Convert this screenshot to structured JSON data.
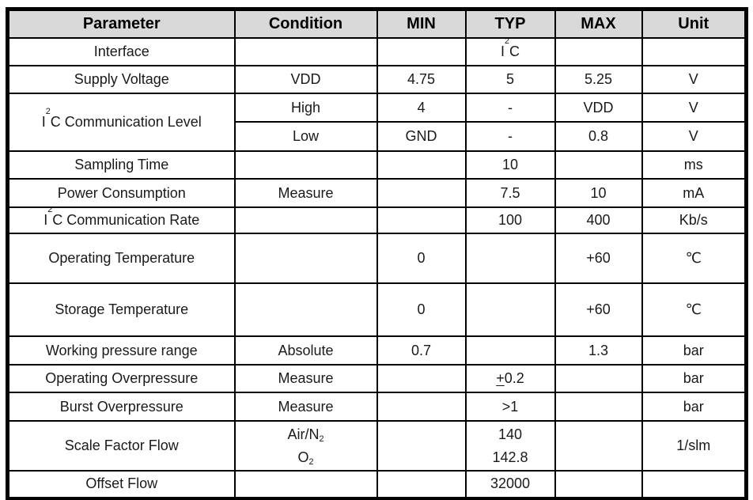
{
  "table": {
    "headers": [
      "Parameter",
      "Condition",
      "MIN",
      "TYP",
      "MAX",
      "Unit"
    ],
    "header_bg": "#d9d9d9",
    "border_color": "#000000",
    "rows": [
      {
        "cells": [
          {
            "text": "Interface"
          },
          {
            "text": ""
          },
          {
            "text": ""
          },
          {
            "text": "I^2^C"
          },
          {
            "text": ""
          },
          {
            "text": ""
          }
        ]
      },
      {
        "cells": [
          {
            "text": "Supply Voltage"
          },
          {
            "text": "VDD"
          },
          {
            "text": "4.75"
          },
          {
            "text": "5"
          },
          {
            "text": "5.25"
          },
          {
            "text": "V"
          }
        ]
      },
      {
        "cells": [
          {
            "text": "I^2^C Communication Level",
            "rowspan": 2
          },
          {
            "text": "High"
          },
          {
            "text": "4"
          },
          {
            "text": "-"
          },
          {
            "text": "VDD"
          },
          {
            "text": "V"
          }
        ]
      },
      {
        "cells": [
          {
            "text": "Low"
          },
          {
            "text": "GND"
          },
          {
            "text": "-"
          },
          {
            "text": "0.8"
          },
          {
            "text": "V"
          }
        ]
      },
      {
        "cells": [
          {
            "text": "Sampling Time"
          },
          {
            "text": ""
          },
          {
            "text": ""
          },
          {
            "text": "10"
          },
          {
            "text": ""
          },
          {
            "text": "ms"
          }
        ]
      },
      {
        "cells": [
          {
            "text": "Power Consumption"
          },
          {
            "text": "Measure"
          },
          {
            "text": ""
          },
          {
            "text": "7.5"
          },
          {
            "text": "10"
          },
          {
            "text": "mA"
          }
        ]
      },
      {
        "cells": [
          {
            "text": "I^2^C Communication Rate"
          },
          {
            "text": ""
          },
          {
            "text": ""
          },
          {
            "text": "100"
          },
          {
            "text": "400"
          },
          {
            "text": "Kb/s"
          }
        ]
      },
      {
        "cells": [
          {
            "text": "Operating Temperature"
          },
          {
            "text": ""
          },
          {
            "text": "0"
          },
          {
            "text": ""
          },
          {
            "text": "+60"
          },
          {
            "text": "℃"
          }
        ]
      },
      {
        "cells": [
          {
            "text": "Storage Temperature"
          },
          {
            "text": ""
          },
          {
            "text": "0"
          },
          {
            "text": ""
          },
          {
            "text": "+60"
          },
          {
            "text": "℃"
          }
        ]
      },
      {
        "cells": [
          {
            "text": "Working pressure range"
          },
          {
            "text": "Absolute"
          },
          {
            "text": "0.7"
          },
          {
            "text": ""
          },
          {
            "text": "1.3"
          },
          {
            "text": "bar"
          }
        ]
      },
      {
        "cells": [
          {
            "text": "Operating Overpressure"
          },
          {
            "text": "Measure"
          },
          {
            "text": ""
          },
          {
            "text": "_+_0.2"
          },
          {
            "text": ""
          },
          {
            "text": "bar"
          }
        ]
      },
      {
        "cells": [
          {
            "text": "Burst Overpressure"
          },
          {
            "text": "Measure"
          },
          {
            "text": ""
          },
          {
            "text": ">1"
          },
          {
            "text": ""
          },
          {
            "text": "bar"
          }
        ]
      },
      {
        "cells": [
          {
            "text": "Scale Factor Flow"
          },
          {
            "lines": [
              "Air/N~2~",
              "O~2~"
            ]
          },
          {
            "text": ""
          },
          {
            "lines": [
              "140",
              "142.8"
            ]
          },
          {
            "text": ""
          },
          {
            "text": "1/slm"
          }
        ]
      },
      {
        "cells": [
          {
            "text": "Offset Flow"
          },
          {
            "text": ""
          },
          {
            "text": ""
          },
          {
            "text": "32000"
          },
          {
            "text": ""
          },
          {
            "text": ""
          }
        ]
      }
    ]
  }
}
